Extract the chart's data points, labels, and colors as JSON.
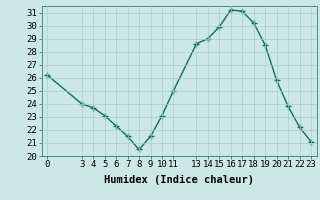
{
  "x": [
    0,
    3,
    4,
    5,
    6,
    7,
    8,
    9,
    10,
    11,
    13,
    14,
    15,
    16,
    17,
    18,
    19,
    20,
    21,
    22,
    23
  ],
  "y": [
    26.2,
    24.0,
    23.7,
    23.1,
    22.3,
    21.5,
    20.5,
    21.5,
    23.1,
    25.0,
    28.6,
    29.0,
    29.9,
    31.2,
    31.1,
    30.2,
    28.5,
    25.8,
    23.8,
    22.2,
    21.1
  ],
  "line_color": "#1a6b5a",
  "marker_color": "#1a6b5a",
  "bg_color": "#cce8e4",
  "grid_color": "#aacfcc",
  "xlabel": "Humidex (Indice chaleur)",
  "xlim": [
    -0.5,
    23.5
  ],
  "ylim": [
    20,
    31.5
  ],
  "yticks": [
    20,
    21,
    22,
    23,
    24,
    25,
    26,
    27,
    28,
    29,
    30,
    31
  ],
  "xticks": [
    0,
    3,
    4,
    5,
    6,
    7,
    8,
    9,
    10,
    11,
    13,
    14,
    15,
    16,
    17,
    18,
    19,
    20,
    21,
    22,
    23
  ],
  "marker_size": 2.5,
  "line_width": 1.0,
  "font_size": 6.5,
  "xlabel_fontsize": 7.5
}
